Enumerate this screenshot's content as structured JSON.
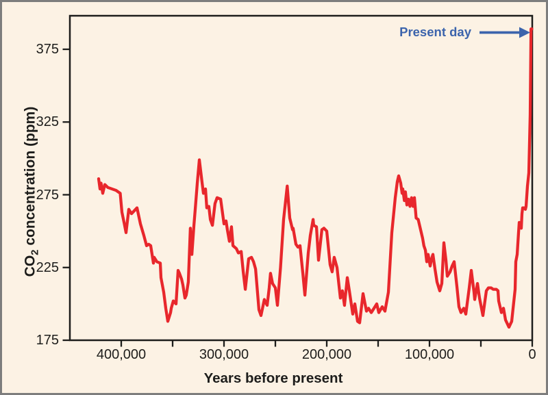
{
  "figure": {
    "background_color": "#FCF2E4",
    "border_color": "#7D7D7D",
    "frame_color": "#1D1D1B",
    "text_color": "#1D1D1B"
  },
  "annotation": {
    "label": "Present day",
    "color": "#3C64AC"
  },
  "axes": {
    "x": {
      "title": "Years before present",
      "major_ticks": [
        {
          "value": 400000,
          "label": "400,000"
        },
        {
          "value": 300000,
          "label": "300,000"
        },
        {
          "value": 200000,
          "label": "200,000"
        },
        {
          "value": 100000,
          "label": "100,000"
        },
        {
          "value": 0,
          "label": "0"
        }
      ],
      "minor_ticks": [
        350000,
        250000,
        150000,
        50000
      ],
      "range_years": [
        450000,
        0
      ]
    },
    "y": {
      "title_prefix": "CO",
      "title_sub": "2",
      "title_suffix": " concentration (ppm)",
      "ticks": [
        {
          "value": 375,
          "label": "375"
        },
        {
          "value": 325,
          "label": "325"
        },
        {
          "value": 275,
          "label": "275"
        },
        {
          "value": 225,
          "label": "225"
        },
        {
          "value": 175,
          "label": "175"
        }
      ],
      "range_ppm": [
        175,
        398
      ]
    }
  },
  "chart_data": {
    "type": "line",
    "title": "",
    "xlabel": "Years before present",
    "ylabel": "CO2 concentration (ppm)",
    "legend": "none",
    "grid": false,
    "x_range_years_before_present": [
      450000,
      0
    ],
    "y_range_ppm": [
      175,
      398
    ],
    "line_color": "#E8272C",
    "annotation_points_to": "modern CO2 spike at year 0 reaching ~389 ppm",
    "points": [
      [
        422000,
        286
      ],
      [
        420700,
        279
      ],
      [
        419700,
        283
      ],
      [
        418000,
        276
      ],
      [
        416000,
        282
      ],
      [
        413000,
        280
      ],
      [
        409000,
        279
      ],
      [
        405000,
        278
      ],
      [
        401000,
        276
      ],
      [
        399300,
        263
      ],
      [
        397000,
        255
      ],
      [
        395300,
        249
      ],
      [
        392700,
        265
      ],
      [
        390000,
        262
      ],
      [
        387300,
        264
      ],
      [
        384700,
        266
      ],
      [
        381300,
        255
      ],
      [
        378000,
        247
      ],
      [
        375300,
        240
      ],
      [
        373300,
        241
      ],
      [
        371300,
        240
      ],
      [
        368700,
        228
      ],
      [
        368000,
        232
      ],
      [
        365300,
        229
      ],
      [
        362000,
        228
      ],
      [
        361300,
        218
      ],
      [
        358700,
        208
      ],
      [
        356700,
        197
      ],
      [
        354700,
        188
      ],
      [
        352000,
        194
      ],
      [
        351300,
        197
      ],
      [
        349300,
        202
      ],
      [
        346700,
        200
      ],
      [
        344700,
        223
      ],
      [
        343300,
        221
      ],
      [
        341300,
        217
      ],
      [
        340000,
        213
      ],
      [
        338000,
        204
      ],
      [
        336700,
        206
      ],
      [
        334700,
        215
      ],
      [
        332700,
        252
      ],
      [
        331300,
        234
      ],
      [
        329300,
        254
      ],
      [
        328000,
        265
      ],
      [
        326000,
        283
      ],
      [
        324000,
        299
      ],
      [
        321300,
        283
      ],
      [
        320000,
        276
      ],
      [
        318000,
        279
      ],
      [
        316700,
        266
      ],
      [
        314700,
        267
      ],
      [
        313300,
        258
      ],
      [
        311300,
        254
      ],
      [
        308700,
        269
      ],
      [
        306700,
        273
      ],
      [
        303300,
        272
      ],
      [
        300000,
        255
      ],
      [
        298000,
        257
      ],
      [
        296700,
        251
      ],
      [
        294700,
        243
      ],
      [
        292700,
        253
      ],
      [
        291300,
        240
      ],
      [
        288000,
        238
      ],
      [
        286000,
        235
      ],
      [
        283300,
        236
      ],
      [
        281300,
        222
      ],
      [
        279300,
        210
      ],
      [
        276000,
        231
      ],
      [
        273300,
        232
      ],
      [
        271300,
        229
      ],
      [
        269300,
        224
      ],
      [
        266000,
        196
      ],
      [
        264000,
        192
      ],
      [
        260700,
        203
      ],
      [
        258000,
        199
      ],
      [
        256000,
        211
      ],
      [
        254700,
        221
      ],
      [
        252700,
        214
      ],
      [
        250000,
        211
      ],
      [
        248000,
        199
      ],
      [
        245000,
        225
      ],
      [
        242000,
        258
      ],
      [
        238500,
        281
      ],
      [
        236000,
        259
      ],
      [
        233300,
        251
      ],
      [
        232700,
        252
      ],
      [
        230000,
        241
      ],
      [
        228000,
        239
      ],
      [
        226000,
        240
      ],
      [
        223300,
        221
      ],
      [
        221300,
        206
      ],
      [
        218000,
        235
      ],
      [
        216000,
        247
      ],
      [
        213300,
        258
      ],
      [
        212700,
        254
      ],
      [
        210000,
        253
      ],
      [
        208000,
        230
      ],
      [
        204700,
        251
      ],
      [
        202700,
        252
      ],
      [
        200000,
        250
      ],
      [
        196700,
        227
      ],
      [
        194700,
        222
      ],
      [
        192700,
        232
      ],
      [
        190000,
        225
      ],
      [
        186700,
        204
      ],
      [
        184700,
        209
      ],
      [
        182700,
        199
      ],
      [
        180000,
        218
      ],
      [
        178000,
        209
      ],
      [
        174700,
        193
      ],
      [
        172700,
        200
      ],
      [
        170000,
        188
      ],
      [
        168000,
        187
      ],
      [
        164700,
        207
      ],
      [
        161300,
        195
      ],
      [
        159300,
        197
      ],
      [
        156700,
        194
      ],
      [
        154000,
        197
      ],
      [
        151300,
        200
      ],
      [
        149300,
        194
      ],
      [
        146000,
        198
      ],
      [
        143300,
        195
      ],
      [
        140000,
        208
      ],
      [
        136700,
        249
      ],
      [
        133300,
        273
      ],
      [
        131300,
        284
      ],
      [
        130000,
        288
      ],
      [
        128000,
        283
      ],
      [
        126700,
        276
      ],
      [
        126000,
        279
      ],
      [
        124500,
        271
      ],
      [
        123500,
        277
      ],
      [
        122000,
        268
      ],
      [
        120500,
        272
      ],
      [
        119000,
        267
      ],
      [
        117500,
        273
      ],
      [
        116000,
        267
      ],
      [
        114700,
        273
      ],
      [
        113000,
        259
      ],
      [
        111000,
        258
      ],
      [
        108700,
        251
      ],
      [
        106700,
        245
      ],
      [
        105500,
        240
      ],
      [
        104000,
        237
      ],
      [
        102700,
        229
      ],
      [
        101300,
        234
      ],
      [
        99300,
        226
      ],
      [
        98000,
        231
      ],
      [
        96700,
        234
      ],
      [
        94700,
        224
      ],
      [
        92700,
        215
      ],
      [
        90000,
        209
      ],
      [
        88000,
        214
      ],
      [
        86000,
        242
      ],
      [
        84000,
        230
      ],
      [
        82700,
        219
      ],
      [
        80000,
        222
      ],
      [
        78000,
        226
      ],
      [
        76000,
        229
      ],
      [
        73300,
        212
      ],
      [
        71300,
        198
      ],
      [
        69300,
        194
      ],
      [
        66700,
        197
      ],
      [
        64700,
        193
      ],
      [
        61300,
        211
      ],
      [
        59300,
        223
      ],
      [
        56700,
        208
      ],
      [
        56000,
        203
      ],
      [
        53300,
        214
      ],
      [
        51300,
        204
      ],
      [
        48000,
        192
      ],
      [
        44700,
        209
      ],
      [
        42700,
        211
      ],
      [
        40000,
        211
      ],
      [
        38000,
        210
      ],
      [
        35000,
        210
      ],
      [
        33300,
        209
      ],
      [
        32700,
        202
      ],
      [
        30000,
        194
      ],
      [
        28000,
        197
      ],
      [
        26000,
        189
      ],
      [
        22700,
        184
      ],
      [
        20000,
        188
      ],
      [
        16700,
        210
      ],
      [
        16000,
        229
      ],
      [
        14700,
        234
      ],
      [
        13300,
        249
      ],
      [
        12700,
        256
      ],
      [
        10700,
        252
      ],
      [
        10000,
        262
      ],
      [
        9300,
        266
      ],
      [
        8000,
        266
      ],
      [
        6700,
        265
      ],
      [
        6000,
        267
      ],
      [
        4700,
        281
      ],
      [
        3300,
        290
      ],
      [
        2000,
        330
      ],
      [
        1200,
        389
      ],
      [
        300,
        389
      ]
    ]
  }
}
